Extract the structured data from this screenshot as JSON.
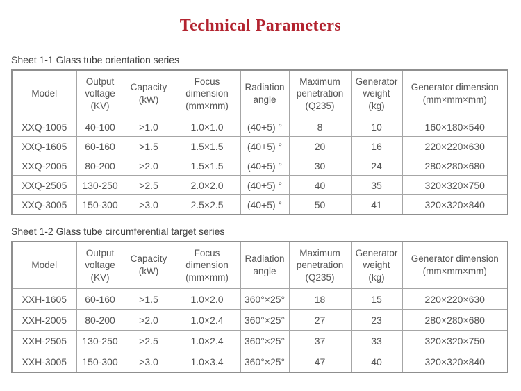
{
  "page": {
    "title": "Technical Parameters",
    "title_color": "#b32430"
  },
  "tables": [
    {
      "caption": "Sheet 1-1 Glass tube orientation series",
      "headers": [
        "Model",
        "Output\nvoltage\n(KV)",
        "Capacity\n(kW)",
        "Focus\ndimension\n(mm×mm)",
        "Radiation\nangle",
        "Maximum\npenetration\n(Q235)",
        "Generator\nweight\n(kg)",
        "Generator dimension\n(mm×mm×mm)"
      ],
      "rows": [
        [
          "XXQ-1005",
          "40-100",
          ">1.0",
          "1.0×1.0",
          "(40+5) °",
          "8",
          "10",
          "160×180×540"
        ],
        [
          "XXQ-1605",
          "60-160",
          ">1.5",
          "1.5×1.5",
          "(40+5) °",
          "20",
          "16",
          "220×220×630"
        ],
        [
          "XXQ-2005",
          "80-200",
          ">2.0",
          "1.5×1.5",
          "(40+5) °",
          "30",
          "24",
          "280×280×680"
        ],
        [
          "XXQ-2505",
          "130-250",
          ">2.5",
          "2.0×2.0",
          "(40+5) °",
          "40",
          "35",
          "320×320×750"
        ],
        [
          "XXQ-3005",
          "150-300",
          ">3.0",
          "2.5×2.5",
          "(40+5) °",
          "50",
          "41",
          "320×320×840"
        ]
      ]
    },
    {
      "caption": "Sheet 1-2 Glass tube circumferential target series",
      "headers": [
        "Model",
        "Output\nvoltage\n(KV)",
        "Capacity\n(kW)",
        "Focus\ndimension\n(mm×mm)",
        "Radiation\nangle",
        "Maximum\npenetration\n(Q235)",
        "Generator\nweight\n(kg)",
        "Generator dimension\n(mm×mm×mm)"
      ],
      "rows": [
        [
          "XXH-1605",
          "60-160",
          ">1.5",
          "1.0×2.0",
          "360°×25°",
          "18",
          "15",
          "220×220×630"
        ],
        [
          "XXH-2005",
          "80-200",
          ">2.0",
          "1.0×2.4",
          "360°×25°",
          "27",
          "23",
          "280×280×680"
        ],
        [
          "XXH-2505",
          "130-250",
          ">2.5",
          "1.0×2.4",
          "360°×25°",
          "37",
          "33",
          "320×320×750"
        ],
        [
          "XXH-3005",
          "150-300",
          ">3.0",
          "1.0×3.4",
          "360°×25°",
          "47",
          "40",
          "320×320×840"
        ]
      ]
    }
  ]
}
